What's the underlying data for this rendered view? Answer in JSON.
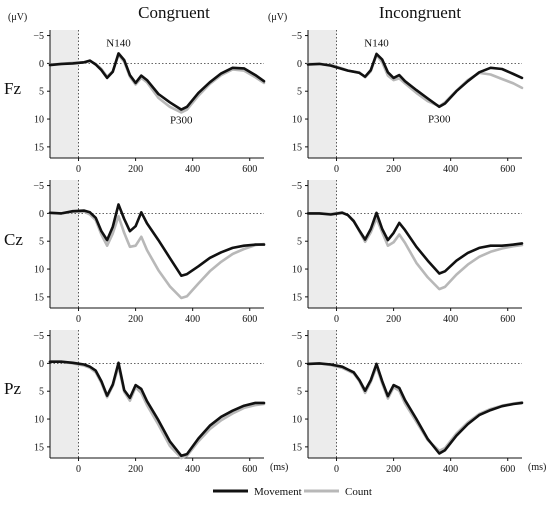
{
  "chart_data": {
    "type": "line",
    "y_unit_label": "(μV)",
    "x_unit_label": "(ms)",
    "columns": [
      "Congruent",
      "Incongruent"
    ],
    "rows": [
      "Fz",
      "Cz",
      "Pz"
    ],
    "xlim": [
      -100,
      650
    ],
    "x_ticks": [
      0,
      200,
      400,
      600
    ],
    "ylim": [
      -6,
      17
    ],
    "y_ticks": [
      -5,
      0,
      5,
      10,
      15
    ],
    "y_inverted": true,
    "baseline_shading": [
      -100,
      0
    ],
    "legend": [
      {
        "name": "Movement",
        "color": "#111111"
      },
      {
        "name": "Count",
        "color": "#b8b8b8"
      }
    ],
    "annotations": [
      {
        "panel": "Fz-Congruent",
        "text": "N140",
        "x": 140,
        "y": -2.3
      },
      {
        "panel": "Fz-Congruent",
        "text": "P300",
        "x": 360,
        "y": 8.3
      },
      {
        "panel": "Fz-Incongruent",
        "text": "N140",
        "x": 140,
        "y": -2.3
      },
      {
        "panel": "Fz-Incongruent",
        "text": "P300",
        "x": 360,
        "y": 8.1
      }
    ],
    "x": [
      -100,
      -60,
      -20,
      20,
      40,
      60,
      80,
      100,
      120,
      140,
      160,
      180,
      200,
      220,
      240,
      280,
      320,
      360,
      380,
      420,
      460,
      500,
      540,
      580,
      620,
      650
    ],
    "panels": [
      {
        "row": "Fz",
        "column": "Congruent",
        "series": [
          {
            "name": "Movement",
            "values": [
              0.3,
              0.1,
              0,
              -0.2,
              -0.5,
              0.2,
              1.2,
              2.6,
              1.5,
              -1.8,
              -0.6,
              2.1,
              3.5,
              2.2,
              3.0,
              5.5,
              7.0,
              8.3,
              7.8,
              5.3,
              3.4,
              1.8,
              0.8,
              0.9,
              2.1,
              3.2
            ]
          },
          {
            "name": "Count",
            "values": [
              0.2,
              0.1,
              -0.1,
              -0.2,
              -0.4,
              0.1,
              1.0,
              2.4,
              1.4,
              -1.5,
              -0.3,
              2.4,
              3.8,
              2.6,
              3.4,
              6.2,
              7.8,
              8.8,
              8.3,
              5.8,
              3.7,
              2.1,
              1.1,
              1.3,
              2.5,
              3.5
            ]
          }
        ]
      },
      {
        "row": "Fz",
        "column": "Incongruent",
        "series": [
          {
            "name": "Movement",
            "values": [
              0.2,
              0.1,
              0.4,
              1.0,
              1.3,
              1.5,
              1.7,
              2.4,
              1.2,
              -1.7,
              -0.7,
              1.6,
              2.6,
              2.1,
              3.2,
              4.8,
              6.3,
              7.8,
              7.2,
              5.0,
              3.2,
              1.6,
              0.8,
              1.0,
              1.9,
              2.6
            ]
          },
          {
            "name": "Count",
            "values": [
              0.1,
              0.1,
              0.3,
              0.9,
              1.3,
              1.5,
              1.6,
              2.5,
              1.4,
              -1.5,
              -0.2,
              2.2,
              3.0,
              2.7,
              3.6,
              5.3,
              6.8,
              7.7,
              7.0,
              4.9,
              3.0,
              1.7,
              2.0,
              2.8,
              3.6,
              4.4
            ]
          }
        ]
      },
      {
        "row": "Cz",
        "column": "Congruent",
        "series": [
          {
            "name": "Movement",
            "values": [
              -0.1,
              0,
              -0.4,
              -0.5,
              -0.2,
              0.8,
              3.2,
              4.8,
              2.4,
              -1.6,
              1.0,
              3.2,
              2.3,
              -0.2,
              1.8,
              4.8,
              8.0,
              11.2,
              10.9,
              9.5,
              8.0,
              7.0,
              6.2,
              5.8,
              5.6,
              5.6
            ]
          },
          {
            "name": "Count",
            "values": [
              -0.1,
              0,
              -0.3,
              -0.3,
              0.2,
              1.2,
              3.8,
              5.8,
              3.6,
              0.5,
              3.5,
              6.0,
              5.8,
              4.2,
              6.6,
              10.2,
              13.1,
              15.2,
              14.9,
              12.6,
              10.4,
              8.7,
              7.3,
              6.4,
              5.7,
              5.5
            ]
          }
        ]
      },
      {
        "row": "Cz",
        "column": "Incongruent",
        "series": [
          {
            "name": "Movement",
            "values": [
              0,
              0,
              0.2,
              -0.1,
              0.3,
              1.4,
              3.1,
              4.7,
              2.8,
              -0.1,
              2.8,
              4.8,
              3.5,
              1.7,
              3.0,
              6.0,
              8.5,
              10.8,
              10.4,
              8.5,
              7.1,
              6.2,
              5.8,
              5.8,
              5.6,
              5.4
            ]
          },
          {
            "name": "Count",
            "values": [
              0,
              0,
              0.1,
              -0.2,
              0.3,
              1.3,
              3.2,
              5.1,
              3.4,
              0.9,
              3.4,
              5.8,
              5.2,
              3.8,
              5.3,
              8.9,
              11.5,
              13.6,
              13.2,
              11.0,
              9.2,
              7.8,
              6.9,
              6.3,
              5.9,
              5.7
            ]
          }
        ]
      },
      {
        "row": "Pz",
        "column": "Congruent",
        "series": [
          {
            "name": "Movement",
            "values": [
              -0.3,
              -0.3,
              -0.1,
              0.2,
              0.6,
              1.3,
              3.2,
              5.8,
              3.8,
              -0.1,
              4.8,
              6.2,
              3.9,
              4.6,
              6.8,
              10.2,
              14.0,
              16.6,
              16.3,
              13.5,
              11.2,
              9.6,
              8.5,
              7.6,
              7.1,
              7.1
            ]
          },
          {
            "name": "Count",
            "values": [
              -0.3,
              -0.3,
              0,
              0.4,
              0.8,
              1.6,
              3.5,
              6.1,
              4.0,
              0.5,
              5.1,
              6.7,
              4.3,
              5.3,
              7.5,
              11.0,
              14.8,
              17.0,
              16.6,
              14.0,
              11.8,
              10.2,
              9.0,
              8.0,
              7.5,
              7.3
            ]
          }
        ]
      },
      {
        "row": "Pz",
        "column": "Incongruent",
        "series": [
          {
            "name": "Movement",
            "values": [
              0.1,
              0,
              0.2,
              0.6,
              1.1,
              1.6,
              3.0,
              4.9,
              3.0,
              0.1,
              3.2,
              5.9,
              3.9,
              4.4,
              6.6,
              10.0,
              13.6,
              16.2,
              15.6,
              13.0,
              10.9,
              9.3,
              8.4,
              7.7,
              7.3,
              7.1
            ]
          },
          {
            "name": "Count",
            "values": [
              0.1,
              0,
              0.3,
              0.8,
              1.3,
              1.8,
              3.2,
              5.3,
              3.3,
              0.6,
              3.6,
              6.3,
              4.3,
              4.9,
              7.2,
              10.5,
              13.8,
              15.7,
              15.2,
              12.6,
              10.6,
              9.1,
              8.2,
              7.6,
              7.2,
              7.0
            ]
          }
        ]
      }
    ]
  }
}
